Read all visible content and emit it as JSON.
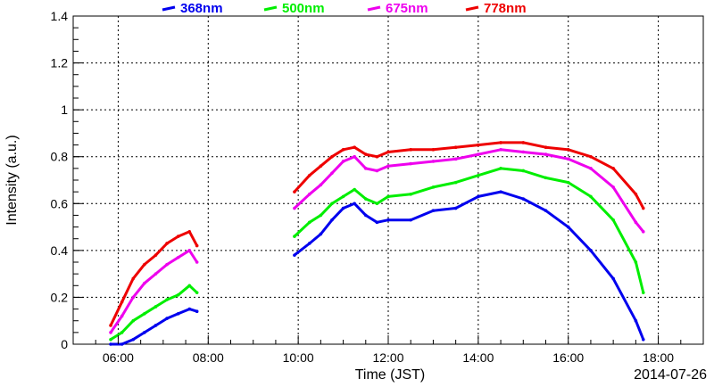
{
  "chart_data": {
    "type": "line",
    "title": "",
    "xlabel": "Time (JST)",
    "ylabel": "Intensity (a.u.)",
    "date_label": "2014-07-26",
    "xlim": [
      "05:00",
      "19:00"
    ],
    "ylim": [
      0,
      1.4
    ],
    "grid": true,
    "legend_position": "top",
    "x_ticks": [
      "06:00",
      "08:00",
      "10:00",
      "12:00",
      "14:00",
      "16:00",
      "18:00"
    ],
    "y_ticks": [
      "0",
      "0.2",
      "0.4",
      "0.6",
      "0.8",
      "1",
      "1.2",
      "1.4"
    ],
    "x": [
      "05:50",
      "06:05",
      "06:20",
      "06:35",
      "06:50",
      "07:05",
      "07:20",
      "07:35",
      "07:45",
      "09:55",
      "10:15",
      "10:30",
      "10:45",
      "11:00",
      "11:15",
      "11:30",
      "11:45",
      "12:00",
      "12:30",
      "13:00",
      "13:30",
      "14:00",
      "14:30",
      "15:00",
      "15:30",
      "16:00",
      "16:30",
      "17:00",
      "17:30",
      "17:40"
    ],
    "series": [
      {
        "name": "368nm",
        "color": "#0000ee",
        "values": [
          0.0,
          0.0,
          0.02,
          0.05,
          0.08,
          0.11,
          0.13,
          0.15,
          0.14,
          0.38,
          0.43,
          0.47,
          0.53,
          0.58,
          0.6,
          0.55,
          0.52,
          0.53,
          0.53,
          0.57,
          0.58,
          0.63,
          0.65,
          0.62,
          0.57,
          0.5,
          0.4,
          0.28,
          0.1,
          0.02
        ]
      },
      {
        "name": "500nm",
        "color": "#00ee00",
        "values": [
          0.02,
          0.05,
          0.1,
          0.13,
          0.16,
          0.19,
          0.21,
          0.25,
          0.22,
          0.46,
          0.52,
          0.55,
          0.6,
          0.63,
          0.66,
          0.62,
          0.6,
          0.63,
          0.64,
          0.67,
          0.69,
          0.72,
          0.75,
          0.74,
          0.71,
          0.69,
          0.63,
          0.53,
          0.35,
          0.22
        ]
      },
      {
        "name": "675nm",
        "color": "#ee00ee",
        "values": [
          0.05,
          0.12,
          0.2,
          0.26,
          0.3,
          0.34,
          0.37,
          0.4,
          0.35,
          0.58,
          0.64,
          0.68,
          0.73,
          0.78,
          0.8,
          0.75,
          0.74,
          0.76,
          0.77,
          0.78,
          0.79,
          0.81,
          0.83,
          0.82,
          0.81,
          0.79,
          0.75,
          0.67,
          0.52,
          0.48
        ]
      },
      {
        "name": "778nm",
        "color": "#ee0000",
        "values": [
          0.08,
          0.18,
          0.28,
          0.34,
          0.38,
          0.43,
          0.46,
          0.48,
          0.42,
          0.65,
          0.72,
          0.76,
          0.8,
          0.83,
          0.84,
          0.81,
          0.8,
          0.82,
          0.83,
          0.83,
          0.84,
          0.85,
          0.86,
          0.86,
          0.84,
          0.83,
          0.8,
          0.75,
          0.64,
          0.58
        ]
      }
    ]
  }
}
